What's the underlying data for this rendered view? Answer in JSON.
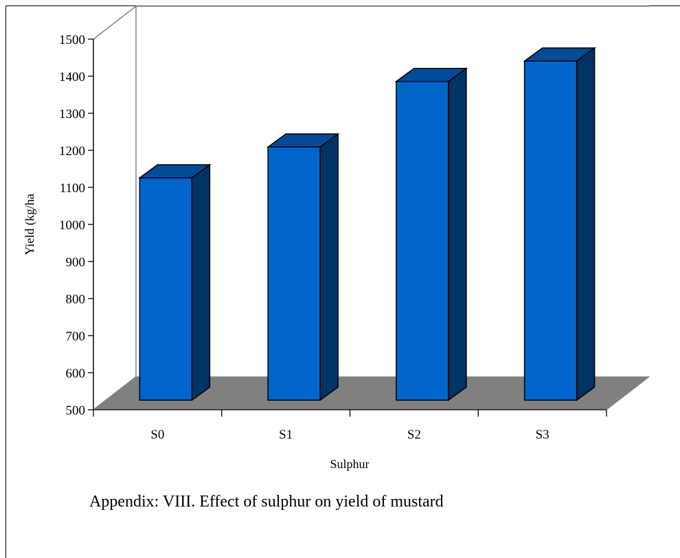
{
  "chart_data": {
    "type": "bar",
    "style": "3d-column",
    "categories": [
      "S0",
      "S1",
      "S2",
      "S3"
    ],
    "values": [
      1100,
      1183,
      1360,
      1415
    ],
    "xlabel": "Sulphur",
    "ylabel": "Yield (kg/ha",
    "ylim": [
      500,
      1500
    ],
    "yticks": [
      "500",
      "600",
      "700",
      "800",
      "900",
      "1000",
      "1100",
      "1200",
      "1300",
      "1400",
      "1500"
    ],
    "grid": false,
    "colors": {
      "bar_front": "#0066CC",
      "bar_top": "#004C99",
      "bar_side": "#003366",
      "floor": "#808080",
      "walls": "#ffffff"
    }
  },
  "caption": "Appendix: VIII. Effect of sulphur on yield of mustard"
}
